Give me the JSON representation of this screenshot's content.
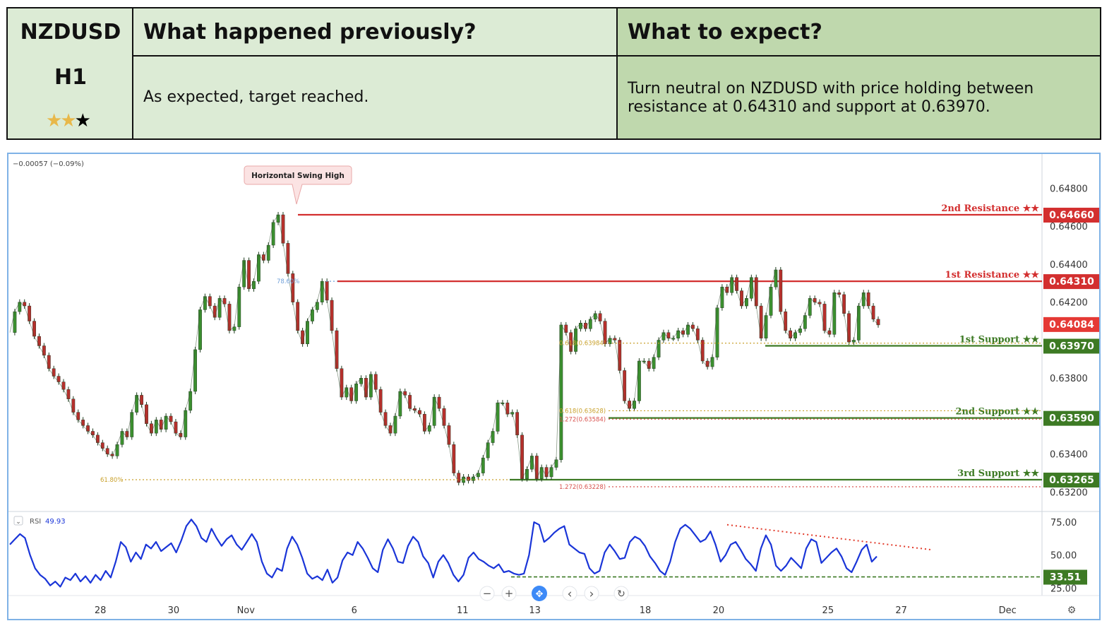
{
  "header": {
    "symbol": "NZDUSD",
    "timeframe": "H1",
    "stars": {
      "filled": 2,
      "total": 3
    },
    "previous_title": "What happened previously?",
    "previous_text": "As expected, target reached.",
    "expect_title": "What to expect?",
    "expect_text_line1": "Turn neutral on NZDUSD with price holding between",
    "expect_text_line2": "resistance at 0.64310 and support at 0.63970.",
    "colors": {
      "left_bg": "#dcebd5",
      "right_bg": "#bfd8ad"
    }
  },
  "chart_data": {
    "type": "line",
    "title": "",
    "change_text": "−0.00057 (−0.09%)",
    "x_ticks": [
      "28",
      "30",
      "Nov",
      "6",
      "11",
      "13",
      "18",
      "20",
      "25",
      "27",
      "Dec"
    ],
    "y_ticks": [
      "0.64800",
      "0.64600",
      "0.64400",
      "0.64200",
      "0.63800",
      "0.63400",
      "0.63200"
    ],
    "ylim": [
      0.6312,
      0.6498
    ],
    "price_series": [
      0.6404,
      0.6415,
      0.642,
      0.6418,
      0.641,
      0.6402,
      0.6397,
      0.6392,
      0.6385,
      0.6381,
      0.6378,
      0.6374,
      0.6369,
      0.6362,
      0.6358,
      0.6355,
      0.6352,
      0.635,
      0.6346,
      0.6343,
      0.634,
      0.6339,
      0.6345,
      0.6352,
      0.6349,
      0.6362,
      0.6371,
      0.6366,
      0.6356,
      0.6351,
      0.6358,
      0.6353,
      0.636,
      0.6357,
      0.6351,
      0.6349,
      0.6363,
      0.6373,
      0.6395,
      0.6416,
      0.6423,
      0.6418,
      0.6412,
      0.6422,
      0.6419,
      0.6405,
      0.6407,
      0.6428,
      0.6442,
      0.6427,
      0.6431,
      0.6445,
      0.6442,
      0.645,
      0.6462,
      0.6466,
      0.6451,
      0.6435,
      0.642,
      0.6405,
      0.6398,
      0.641,
      0.6416,
      0.642,
      0.6431,
      0.6421,
      0.6405,
      0.6385,
      0.637,
      0.6375,
      0.6368,
      0.6377,
      0.638,
      0.637,
      0.6382,
      0.6374,
      0.6362,
      0.6355,
      0.6351,
      0.636,
      0.6373,
      0.6371,
      0.6364,
      0.6363,
      0.6361,
      0.6352,
      0.6355,
      0.637,
      0.6364,
      0.6355,
      0.6345,
      0.633,
      0.6325,
      0.6328,
      0.6326,
      0.6328,
      0.633,
      0.6338,
      0.6346,
      0.6352,
      0.6367,
      0.6367,
      0.6361,
      0.6362,
      0.635,
      0.6327,
      0.6332,
      0.6339,
      0.6327,
      0.6333,
      0.6328,
      0.6333,
      0.6337,
      0.6408,
      0.6404,
      0.6394,
      0.6406,
      0.6409,
      0.6406,
      0.6411,
      0.6414,
      0.641,
      0.6398,
      0.6401,
      0.64,
      0.6384,
      0.6368,
      0.6364,
      0.6368,
      0.6389,
      0.6389,
      0.6385,
      0.6391,
      0.64,
      0.6404,
      0.6401,
      0.6401,
      0.6405,
      0.6403,
      0.6408,
      0.6406,
      0.64,
      0.6389,
      0.6386,
      0.6391,
      0.6417,
      0.6428,
      0.6425,
      0.6433,
      0.6426,
      0.6418,
      0.6422,
      0.6433,
      0.6418,
      0.6401,
      0.6413,
      0.6428,
      0.6437,
      0.6415,
      0.6405,
      0.6401,
      0.6404,
      0.6406,
      0.6413,
      0.6422,
      0.642,
      0.6419,
      0.6405,
      0.6403,
      0.6425,
      0.6424,
      0.6414,
      0.6399,
      0.64,
      0.6418,
      0.6425,
      0.6418,
      0.6411,
      0.6408
    ],
    "levels": [
      {
        "name": "2nd Resistance ★★",
        "price": 0.6466,
        "label": "0.64660",
        "color": "#d32f2f"
      },
      {
        "name": "1st Resistance ★★",
        "price": 0.6431,
        "label": "0.64310",
        "color": "#d32f2f"
      },
      {
        "name": "1st Support ★★",
        "price": 0.6397,
        "label": "0.63970",
        "color": "#3d7a24"
      },
      {
        "name": "2nd Support ★★",
        "price": 0.6359,
        "label": "0.63590",
        "color": "#3d7a24"
      },
      {
        "name": "3rd Support ★★",
        "price": 0.63265,
        "label": "0.63265",
        "color": "#3d7a24"
      }
    ],
    "current_price": {
      "price": 0.64084,
      "label": "0.64084",
      "color": "#e53935"
    },
    "fib_labels": [
      {
        "text": "78.60%",
        "price": 0.6431,
        "color": "#6f9fd8"
      },
      {
        "text": "0.618(0.63984)",
        "price": 0.63984,
        "color": "#c9a12c"
      },
      {
        "text": "0.618(0.63628)",
        "price": 0.63628,
        "color": "#c9a12c"
      },
      {
        "text": "1.272(0.63584)",
        "price": 0.63584,
        "color": "#d9534f"
      },
      {
        "text": "61.80%",
        "price": 0.63265,
        "color": "#c9a12c"
      },
      {
        "text": "1.272(0.63228)",
        "price": 0.63228,
        "color": "#d9534f"
      }
    ],
    "callout": "Horizontal Swing High",
    "rsi": {
      "label": "RSI",
      "value": "49.93",
      "ylim": [
        22,
        82
      ],
      "y_ticks": [
        "75.00",
        "50.00",
        "25.00"
      ],
      "support_level": 33.51,
      "support_label": "33.51",
      "series": [
        58,
        62,
        66,
        63,
        50,
        40,
        35,
        32,
        27,
        30,
        26,
        33,
        31,
        36,
        30,
        34,
        29,
        35,
        31,
        38,
        33,
        45,
        60,
        56,
        45,
        52,
        47,
        58,
        55,
        60,
        53,
        56,
        59,
        52,
        61,
        72,
        77,
        72,
        63,
        60,
        70,
        63,
        57,
        62,
        65,
        58,
        54,
        60,
        66,
        60,
        45,
        36,
        33,
        40,
        38,
        55,
        64,
        58,
        48,
        36,
        32,
        34,
        31,
        39,
        29,
        33,
        46,
        52,
        50,
        60,
        55,
        48,
        40,
        37,
        54,
        62,
        55,
        45,
        44,
        57,
        64,
        60,
        49,
        44,
        33,
        45,
        50,
        44,
        35,
        30,
        35,
        48,
        52,
        47,
        45,
        42,
        40,
        43,
        37,
        38,
        36,
        35,
        36,
        50,
        75,
        73,
        60,
        63,
        67,
        70,
        72,
        58,
        55,
        52,
        51,
        40,
        36,
        38,
        52,
        58,
        53,
        47,
        48,
        60,
        64,
        62,
        57,
        49,
        44,
        38,
        35,
        45,
        60,
        70,
        73,
        70,
        65,
        60,
        62,
        68,
        58,
        45,
        50,
        58,
        60,
        54,
        47,
        43,
        38,
        55,
        65,
        58,
        42,
        38,
        42,
        48,
        44,
        40,
        55,
        62,
        60,
        44,
        48,
        52,
        55,
        49,
        40,
        37,
        45,
        54,
        58,
        45,
        49
      ]
    },
    "rsi_trendline_label": ""
  },
  "controls": {
    "zoom_out": "−",
    "zoom_in": "+",
    "reset": "✥",
    "prev": "‹",
    "next": "›",
    "refresh": "↻",
    "settings_icon": "⚙",
    "collapse_icon": "⌄"
  }
}
